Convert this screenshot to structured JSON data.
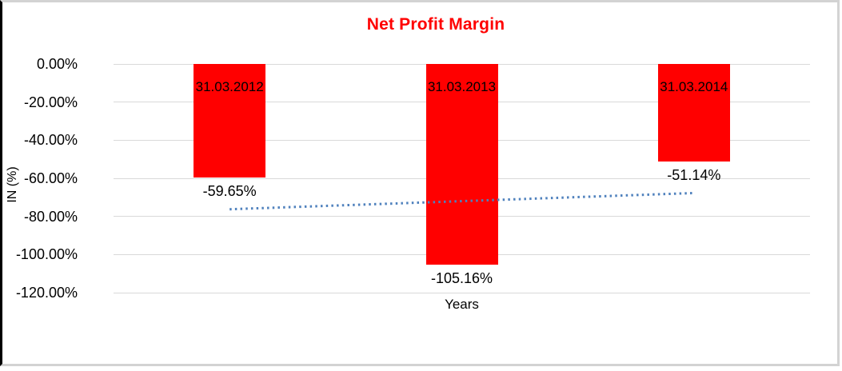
{
  "chart_data": {
    "type": "bar",
    "title": "Net Profit Margin",
    "title_color": "#FF0000",
    "xlabel": "Years",
    "ylabel": "IN (%)",
    "categories": [
      "31.03.2012",
      "31.03.2013",
      "31.03.2014"
    ],
    "values": [
      -59.65,
      -105.16,
      -51.14
    ],
    "value_labels": [
      "-59.65%",
      "-105.16%",
      "-51.14%"
    ],
    "bar_color": "#FF0000",
    "ylim": [
      -120,
      0
    ],
    "yticks": [
      0,
      -20,
      -40,
      -60,
      -80,
      -100,
      -120
    ],
    "ytick_labels": [
      "0.00%",
      "-20.00%",
      "-40.00%",
      "-60.00%",
      "-80.00%",
      "-100.00%",
      "-120.00%"
    ],
    "grid": true,
    "gridline_color": "#d9d9d9",
    "legend": "none",
    "trendline": {
      "type": "linear",
      "style": "dotted",
      "color": "#4F81BD",
      "values": [
        -76.24,
        -71.98,
        -67.73
      ]
    }
  },
  "frame": {
    "border_color": "#d3d3d3",
    "left_border_color": "#000000",
    "background": "#ffffff"
  }
}
